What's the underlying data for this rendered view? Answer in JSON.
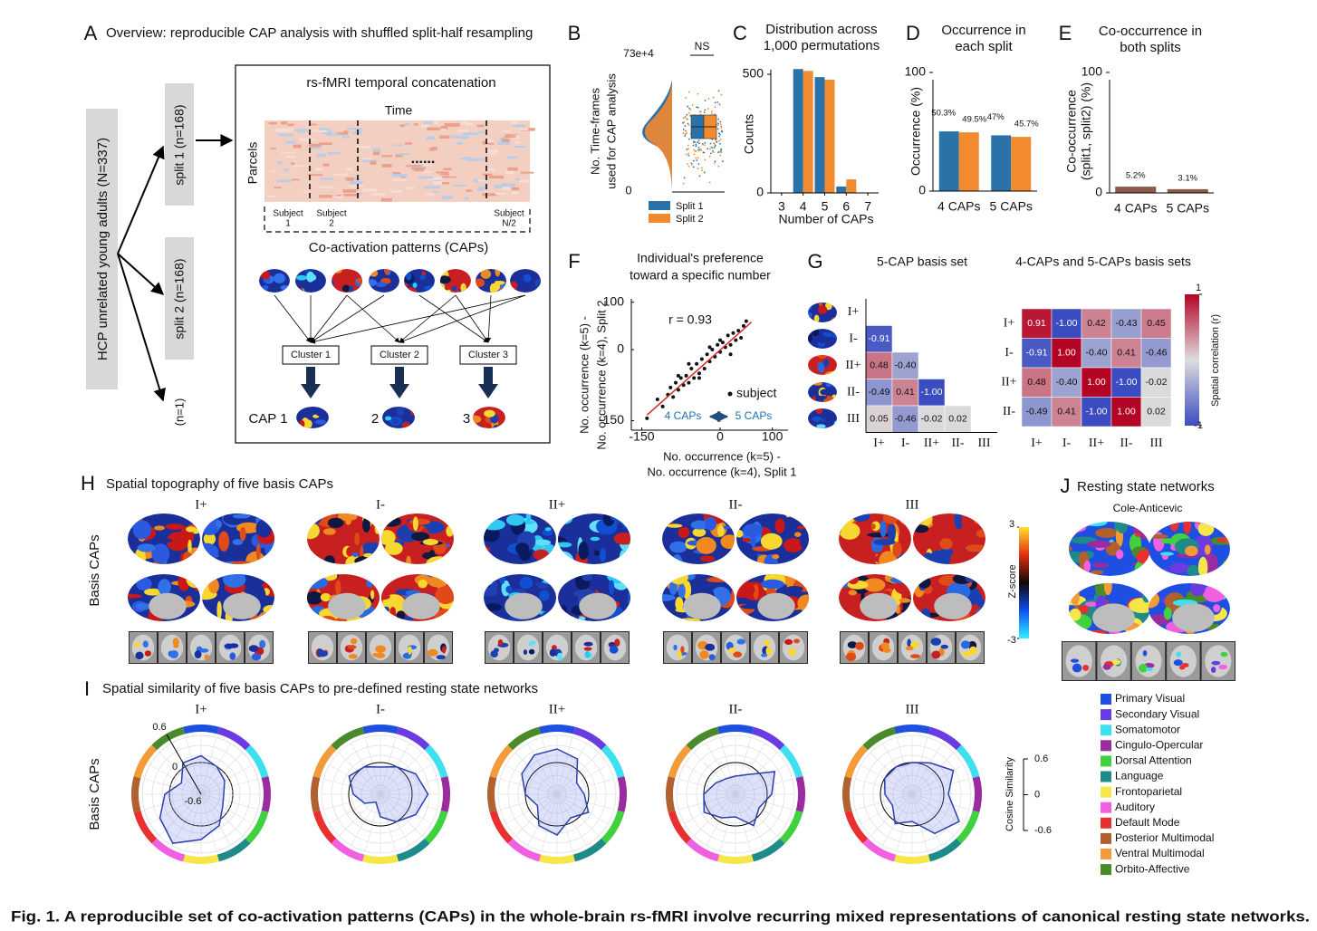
{
  "caption": "Fig. 1. A reproducible set of co-activation patterns (CAPs) in the whole-brain rs-fMRI involve recurring mixed representations of canonical resting state networks.",
  "panel_a": {
    "letter": "A",
    "title": "Overview: reproducible CAP analysis with shuffled split-half resampling",
    "cohort": "HCP unrelated young adults (N=337)",
    "split1": "split 1 (n=168)",
    "split2": "split 2 (n=168)",
    "single": "(n=1)",
    "concat_title": "rs-fMRI temporal concatenation",
    "time": "Time",
    "parcels": "Parcels",
    "ellipsis": "......",
    "subjects": [
      [
        "Subject",
        "1"
      ],
      [
        "Subject",
        "2"
      ],
      [
        "Subject",
        "N/2"
      ]
    ],
    "caps_label": "Co-activation patterns (CAPs)",
    "clusters": [
      "Cluster 1",
      "Cluster 2",
      "Cluster 3"
    ],
    "caps": [
      "CAP 1",
      "2",
      "3"
    ]
  },
  "panel_b": {
    "letter": "B",
    "exponent": "73e+4",
    "ns": "NS",
    "ylabel": [
      "No. Time-frames",
      "used for CAP analysis"
    ],
    "yticks": [
      0
    ],
    "legend": [
      {
        "name": "Split 1",
        "color": "#2b72a8"
      },
      {
        "name": "Split 2",
        "color": "#f28a30"
      }
    ]
  },
  "chart_data": [
    {
      "type": "bar",
      "letter": "C",
      "title": [
        "Distribution across",
        "1,000 permutations"
      ],
      "xlabel": "Number of CAPs",
      "ylabel": "Counts",
      "x": [
        4,
        5,
        6
      ],
      "xlim": [
        2.5,
        7.5
      ],
      "xticks": [
        3,
        4,
        5,
        6,
        7
      ],
      "ylim": [
        0,
        550
      ],
      "yticks": [
        0,
        500
      ],
      "series": [
        {
          "color": "#2b72a8",
          "values": [
            522,
            488,
            27
          ]
        },
        {
          "color": "#f28a30",
          "values": [
            514,
            477,
            57
          ]
        }
      ]
    },
    {
      "type": "bar",
      "letter": "D",
      "title": [
        "Occurrence in",
        "each split"
      ],
      "ylabel": "Occurrence (%)",
      "categories": [
        "4 CAPs",
        "5 CAPs"
      ],
      "ylim": [
        0,
        100
      ],
      "yticks": [
        0,
        100
      ],
      "series": [
        {
          "color": "#2b72a8",
          "values": [
            50.3,
            47
          ],
          "value_labels": [
            "50.3%",
            "47%"
          ]
        },
        {
          "color": "#f28a30",
          "values": [
            49.5,
            45.7
          ],
          "value_labels": [
            "49.5%",
            "45.7%"
          ]
        }
      ]
    },
    {
      "type": "bar",
      "letter": "E",
      "title": [
        "Co-occurrence in",
        "both splits"
      ],
      "ylabel": [
        "Co-occurrence",
        "(split1, split2) (%)"
      ],
      "categories": [
        "4 CAPs",
        "5 CAPs"
      ],
      "ylim": [
        0,
        100
      ],
      "yticks": [
        0,
        100
      ],
      "series": [
        {
          "color": "#8c5a4b",
          "values": [
            5.2,
            3.1
          ],
          "value_labels": [
            "5.2%",
            "3.1%"
          ]
        }
      ]
    },
    {
      "type": "scatter",
      "letter": "F",
      "title": [
        "Individual's preference",
        "toward a specific number"
      ],
      "xlabel": [
        "No. occurrence (k=5) -",
        "No. occurrence (k=4), Split 1"
      ],
      "ylabel": [
        "No. occurrence (k=5) -",
        "No. occurrence (k=4), Split 2"
      ],
      "annotation": "r = 0.93",
      "legend": "subject",
      "arrow_labels": [
        "4 CAPs",
        "5 CAPs"
      ],
      "arrow_color": "#1f6fb0",
      "color": "#111111",
      "x": [
        -140,
        -120,
        -110,
        -100,
        -95,
        -90,
        -85,
        -80,
        -75,
        -70,
        -65,
        -60,
        -55,
        -50,
        -45,
        -40,
        -35,
        -30,
        -25,
        -20,
        -15,
        -10,
        -5,
        0,
        5,
        10,
        15,
        20,
        25,
        30,
        35,
        40,
        45,
        50,
        -60,
        -40,
        -20,
        0,
        20,
        -80
      ],
      "y": [
        -145,
        -105,
        -120,
        -95,
        -80,
        -100,
        -70,
        -85,
        -60,
        -75,
        -55,
        -70,
        -40,
        -60,
        -30,
        -50,
        -20,
        -40,
        -10,
        -25,
        0,
        -15,
        10,
        -5,
        15,
        5,
        30,
        10,
        35,
        20,
        40,
        25,
        50,
        60,
        -30,
        -60,
        5,
        20,
        -10,
        -55
      ],
      "fit": {
        "color": "#d62728",
        "x": [
          -140,
          60
        ],
        "y": [
          -138,
          58
        ]
      },
      "xlim": [
        -170,
        130
      ],
      "ylim": [
        -170,
        130
      ],
      "xticks": [
        -150,
        0,
        100
      ],
      "yticks": [
        -150,
        0,
        100
      ]
    },
    {
      "type": "heatmap",
      "letter": "G",
      "title": "5-CAP basis set",
      "clim": [
        -1,
        1
      ],
      "rows": [
        "I+",
        "I-",
        "II+",
        "II-",
        "III"
      ],
      "columns": [
        "I+",
        "I-",
        "II+",
        "II-",
        "III"
      ],
      "values": [
        [
          null,
          null,
          null,
          null,
          null
        ],
        [
          -0.91,
          null,
          null,
          null,
          null
        ],
        [
          0.48,
          -0.4,
          null,
          null,
          null
        ],
        [
          -0.49,
          0.41,
          -1,
          null,
          null
        ],
        [
          0.05,
          -0.46,
          -0.02,
          0.02,
          null
        ]
      ],
      "value_labels": [
        [
          null,
          null,
          null,
          null,
          null
        ],
        [
          "-0.91",
          null,
          null,
          null,
          null
        ],
        [
          "0.48",
          "-0.40",
          null,
          null,
          null
        ],
        [
          "-0.49",
          "0.41",
          "-1.00",
          null,
          null
        ],
        [
          "0.05",
          "-0.46",
          "-0.02",
          "0.02",
          null
        ]
      ]
    },
    {
      "type": "heatmap",
      "title": "4-CAPs and 5-CAPs basis sets",
      "clim": [
        -1,
        1
      ],
      "rows": [
        "I+",
        "I-",
        "II+",
        "II-"
      ],
      "columns": [
        "I+",
        "I-",
        "II+",
        "II-",
        "III"
      ],
      "values": [
        [
          0.91,
          -1,
          0.42,
          -0.43,
          0.45
        ],
        [
          -0.91,
          1,
          -0.4,
          0.41,
          -0.46
        ],
        [
          0.48,
          -0.4,
          1,
          -1,
          -0.02
        ],
        [
          -0.49,
          0.41,
          -1,
          1,
          0.02
        ]
      ],
      "value_labels": [
        [
          "0.91",
          "-1.00",
          "0.42",
          "-0.43",
          "0.45"
        ],
        [
          "-0.91",
          "1.00",
          "-0.40",
          "0.41",
          "-0.46"
        ],
        [
          "0.48",
          "-0.40",
          "1.00",
          "-1.00",
          "-0.02"
        ],
        [
          "-0.49",
          "0.41",
          "-1.00",
          "1.00",
          "0.02"
        ]
      ],
      "colorbar": {
        "label": "Spatial correlation (r)",
        "ticks": [
          1,
          -1
        ]
      }
    },
    {
      "type": "radar",
      "letter": "I",
      "title": "Spatial similarity of five basis CAPs to pre-defined resting state networks",
      "ylabel": "Basis CAPs",
      "rlim": [
        -0.6,
        0.6
      ],
      "rticks": [
        0.6,
        0,
        -0.6
      ],
      "line_color": "#2a3fb0",
      "series": [
        {
          "name": "I+",
          "values": [
            0.15,
            0,
            -0.1,
            -0.2,
            -0.15,
            0.1,
            0.3,
            0.55,
            0.35,
            0.1,
            -0.2,
            0.1
          ]
        },
        {
          "name": "I-",
          "values": [
            -0.1,
            0,
            0.2,
            0.35,
            0.2,
            0,
            -0.2,
            -0.5,
            -0.3,
            -0.1,
            0.1,
            0
          ]
        },
        {
          "name": "II+",
          "values": [
            0.3,
            0.2,
            -0.2,
            -0.1,
            0.1,
            -0.1,
            0.2,
            0.1,
            -0.2,
            0,
            0.2,
            0.3
          ]
        },
        {
          "name": "II-",
          "values": [
            -0.3,
            -0.2,
            0.3,
            0.1,
            -0.1,
            0.1,
            -0.2,
            -0.1,
            0.1,
            0,
            -0.2,
            -0.3
          ]
        },
        {
          "name": "III",
          "values": [
            0,
            0.1,
            0.35,
            0.1,
            0.5,
            0.3,
            -0.1,
            0.05,
            -0.2,
            -0.1,
            0,
            0
          ]
        }
      ],
      "colorbar": {
        "label": "Cosine Similarity",
        "ticks": [
          0.6,
          0,
          -0.6
        ]
      }
    }
  ],
  "panel_h": {
    "letter": "H",
    "title": "Spatial topography of five basis CAPs",
    "names": [
      "I+",
      "I-",
      "II+",
      "II-",
      "III"
    ],
    "ylabel": "Basis CAPs",
    "colorbar": {
      "label": "Z-score",
      "ticks": [
        3,
        -3
      ]
    }
  },
  "panel_j": {
    "letter": "J",
    "title": "Resting state networks",
    "atlas": "Cole-Anticevic",
    "networks": [
      {
        "name": "Primary Visual",
        "color": "#1f4fe0"
      },
      {
        "name": "Secondary Visual",
        "color": "#6a3be0"
      },
      {
        "name": "Somatomotor",
        "color": "#3ee0f0"
      },
      {
        "name": "Cingulo-Opercular",
        "color": "#9a2ca0"
      },
      {
        "name": "Dorsal Attention",
        "color": "#40d040"
      },
      {
        "name": "Language",
        "color": "#1f8a8a"
      },
      {
        "name": "Frontoparietal",
        "color": "#f5e74a"
      },
      {
        "name": "Auditory",
        "color": "#f060e0"
      },
      {
        "name": "Default Mode",
        "color": "#e83030"
      },
      {
        "name": "Posterior Multimodal",
        "color": "#b0612e"
      },
      {
        "name": "Ventral Multimodal",
        "color": "#f39a3a"
      },
      {
        "name": "Orbito-Affective",
        "color": "#4a8a2a"
      }
    ]
  }
}
